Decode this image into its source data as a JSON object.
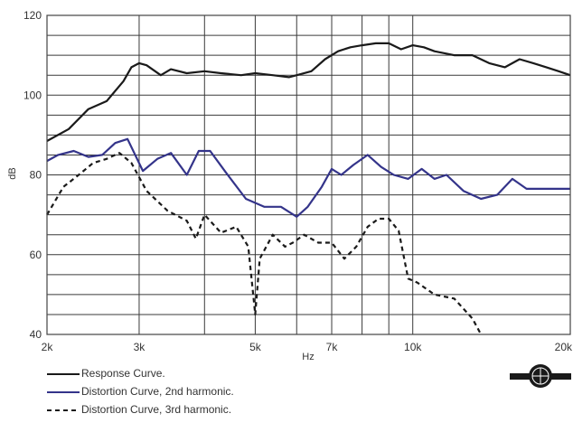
{
  "chart_data": {
    "type": "line",
    "xlabel": "Hz",
    "ylabel": "dB",
    "xscale": "log",
    "xlim": [
      2000,
      20000
    ],
    "ylim": [
      40,
      120
    ],
    "grid": true,
    "legend_position": "bottom-left",
    "x_tick_labels": [
      {
        "x": 2000,
        "label": "2k"
      },
      {
        "x": 3000,
        "label": "3k"
      },
      {
        "x": 5000,
        "label": "5k"
      },
      {
        "x": 7000,
        "label": "7k"
      },
      {
        "x": 10000,
        "label": "10k"
      },
      {
        "x": 20000,
        "label": "20k"
      }
    ],
    "y_tick_labels": [
      {
        "y": 40,
        "label": "40"
      },
      {
        "y": 60,
        "label": "60"
      },
      {
        "y": 80,
        "label": "80"
      },
      {
        "y": 100,
        "label": "100"
      },
      {
        "y": 120,
        "label": "120"
      }
    ],
    "series": [
      {
        "name": "Response Curve.",
        "color": "#1a1a1a",
        "style": "solid",
        "x": [
          2000,
          2200,
          2400,
          2600,
          2800,
          2900,
          3000,
          3100,
          3300,
          3450,
          3700,
          4000,
          4300,
          4700,
          5000,
          5400,
          5800,
          6000,
          6400,
          6800,
          7200,
          7600,
          8000,
          8500,
          9000,
          9500,
          10000,
          10500,
          11000,
          12000,
          13000,
          14000,
          15000,
          16000,
          17000,
          18000,
          19000,
          20000
        ],
        "y": [
          88.5,
          91.5,
          96.5,
          98.5,
          103.5,
          107,
          108,
          107.5,
          105,
          106.5,
          105.5,
          106,
          105.5,
          105,
          105.5,
          105,
          104.5,
          105,
          106,
          109,
          111,
          112,
          112.5,
          113,
          113,
          111.5,
          112.5,
          112,
          111,
          110,
          110,
          108,
          107,
          109,
          108,
          107,
          106,
          105
        ]
      },
      {
        "name": "Distortion Curve, 2nd harmonic.",
        "color": "#34348a",
        "style": "solid",
        "x": [
          2000,
          2100,
          2250,
          2400,
          2550,
          2700,
          2850,
          3050,
          3250,
          3450,
          3700,
          3900,
          4100,
          4400,
          4800,
          5200,
          5600,
          6000,
          6300,
          6700,
          7000,
          7300,
          7700,
          8200,
          8700,
          9200,
          9800,
          10400,
          11000,
          11600,
          12500,
          13500,
          14500,
          15500,
          16500,
          18000,
          20000
        ],
        "y": [
          83.5,
          85,
          86,
          84.5,
          85,
          88,
          89,
          81,
          84,
          85.5,
          80,
          86,
          86,
          80.5,
          74,
          72,
          72,
          69.5,
          72,
          77,
          81.5,
          80,
          82.5,
          85,
          82,
          80,
          79,
          81.5,
          79,
          80,
          76,
          74,
          75,
          79,
          76.5,
          76.5,
          76.5
        ]
      },
      {
        "name": "Distortion Curve, 3rd harmonic.",
        "color": "#1a1a1a",
        "style": "dashed",
        "x": [
          2000,
          2150,
          2300,
          2450,
          2600,
          2750,
          2900,
          3100,
          3400,
          3700,
          3850,
          4000,
          4300,
          4600,
          4850,
          5000,
          5100,
          5400,
          5700,
          5900,
          6200,
          6600,
          7000,
          7400,
          7800,
          8200,
          8600,
          9000,
          9400,
          9800,
          10200,
          11000,
          12000,
          13000,
          13500
        ],
        "y": [
          70,
          77,
          80,
          83,
          84,
          85.5,
          83,
          76,
          71,
          68.5,
          64,
          70,
          65.5,
          67,
          62,
          45,
          59,
          65,
          62,
          63,
          65,
          63,
          63,
          59,
          62,
          67,
          69,
          69,
          66,
          54,
          53,
          50,
          49,
          44,
          40
        ]
      }
    ]
  },
  "legend": {
    "items": [
      {
        "label": "Response Curve."
      },
      {
        "label": "Distortion Curve, 2nd harmonic."
      },
      {
        "label": "Distortion Curve, 3rd harmonic."
      }
    ]
  }
}
